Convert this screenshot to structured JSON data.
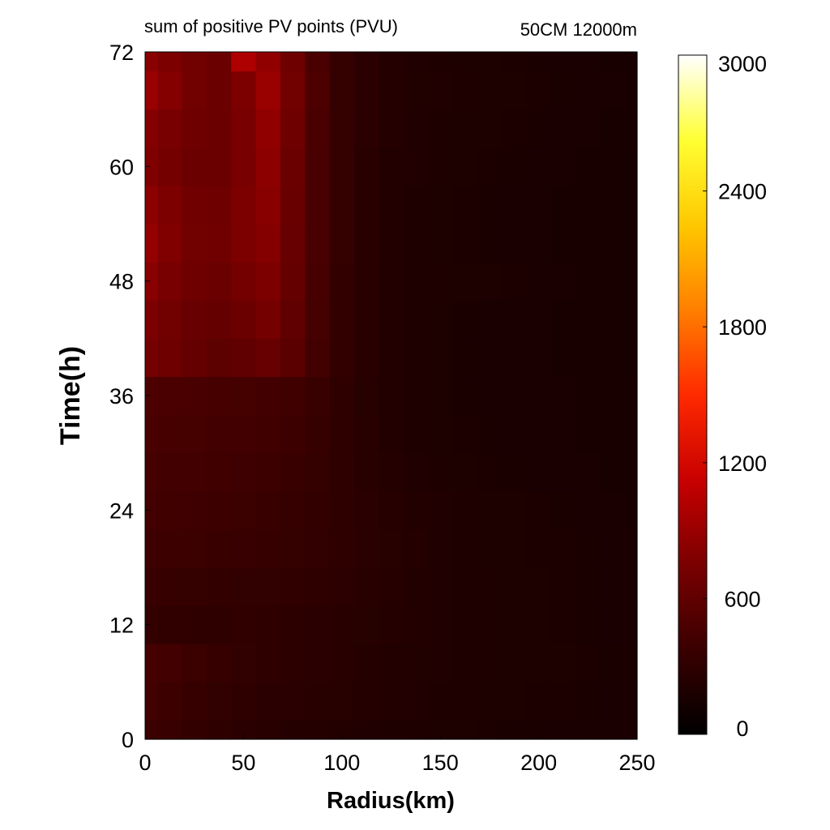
{
  "chart_data": {
    "type": "heatmap",
    "title": "sum of positive PV points (PVU)",
    "subtitle": "50CM 12000m",
    "xlabel": "Radius(km)",
    "ylabel": "Time(h)",
    "xlim": [
      0,
      250
    ],
    "ylim": [
      0,
      72
    ],
    "xticks": [
      0,
      50,
      100,
      150,
      200,
      250
    ],
    "yticks": [
      0,
      12,
      24,
      36,
      48,
      60,
      72
    ],
    "colorbar": {
      "range": [
        0,
        3000
      ],
      "ticks": [
        0,
        600,
        1200,
        1800,
        2400,
        3000
      ],
      "colors": [
        "#000000",
        "#3a0000",
        "#7a0000",
        "#c80000",
        "#ff2a00",
        "#ff7f00",
        "#ffc800",
        "#ffff33",
        "#ffffff"
      ]
    },
    "grid": false,
    "x": [
      0,
      12.5,
      25,
      37.5,
      50,
      62.5,
      75,
      87.5,
      100,
      112.5,
      125,
      137.5,
      150,
      162.5,
      175,
      187.5,
      200,
      212.5,
      225,
      237.5,
      250
    ],
    "y": [
      0,
      4,
      8,
      12,
      16,
      20,
      24,
      28,
      32,
      36,
      40,
      44,
      48,
      52,
      56,
      60,
      64,
      68,
      72
    ],
    "z": [
      [
        380,
        360,
        330,
        300,
        280,
        260,
        240,
        230,
        220,
        210,
        200,
        195,
        190,
        185,
        180,
        175,
        175,
        170,
        170,
        165,
        165
      ],
      [
        420,
        390,
        350,
        320,
        300,
        280,
        270,
        260,
        250,
        235,
        220,
        210,
        200,
        195,
        190,
        185,
        180,
        180,
        175,
        170,
        170
      ],
      [
        440,
        420,
        380,
        350,
        320,
        300,
        290,
        280,
        260,
        240,
        225,
        215,
        205,
        200,
        195,
        190,
        185,
        185,
        180,
        175,
        175
      ],
      [
        330,
        310,
        300,
        300,
        310,
        300,
        290,
        280,
        265,
        250,
        235,
        220,
        210,
        200,
        195,
        190,
        185,
        180,
        175,
        170,
        170
      ],
      [
        360,
        350,
        340,
        330,
        320,
        320,
        310,
        300,
        285,
        265,
        245,
        225,
        210,
        200,
        195,
        190,
        185,
        180,
        175,
        170,
        170
      ],
      [
        400,
        390,
        380,
        370,
        360,
        350,
        340,
        320,
        300,
        280,
        255,
        230,
        210,
        200,
        190,
        185,
        180,
        180,
        175,
        170,
        165
      ],
      [
        420,
        410,
        400,
        390,
        380,
        370,
        350,
        330,
        300,
        270,
        245,
        220,
        205,
        195,
        190,
        185,
        180,
        175,
        170,
        165,
        160
      ],
      [
        440,
        430,
        420,
        410,
        400,
        390,
        370,
        340,
        300,
        265,
        235,
        210,
        195,
        185,
        180,
        175,
        170,
        170,
        165,
        160,
        160
      ],
      [
        460,
        450,
        440,
        430,
        420,
        410,
        390,
        350,
        300,
        260,
        225,
        200,
        190,
        180,
        175,
        170,
        170,
        165,
        160,
        160,
        155
      ],
      [
        480,
        470,
        460,
        450,
        440,
        430,
        410,
        360,
        300,
        255,
        220,
        195,
        185,
        175,
        170,
        170,
        165,
        165,
        160,
        155,
        155
      ],
      [
        720,
        680,
        620,
        580,
        600,
        640,
        560,
        430,
        330,
        260,
        220,
        195,
        185,
        175,
        170,
        165,
        165,
        160,
        160,
        155,
        150
      ],
      [
        760,
        700,
        640,
        620,
        660,
        720,
        600,
        440,
        330,
        260,
        220,
        195,
        185,
        175,
        170,
        165,
        165,
        160,
        160,
        155,
        150
      ],
      [
        820,
        740,
        680,
        660,
        720,
        760,
        620,
        450,
        330,
        260,
        220,
        200,
        195,
        190,
        185,
        180,
        170,
        165,
        160,
        155,
        150
      ],
      [
        880,
        780,
        700,
        690,
        760,
        800,
        640,
        460,
        335,
        265,
        220,
        200,
        190,
        180,
        175,
        170,
        165,
        160,
        160,
        155,
        150
      ],
      [
        840,
        760,
        690,
        680,
        760,
        820,
        650,
        460,
        335,
        265,
        220,
        200,
        190,
        180,
        175,
        170,
        165,
        160,
        160,
        155,
        150
      ],
      [
        780,
        720,
        660,
        660,
        740,
        840,
        660,
        460,
        335,
        265,
        225,
        205,
        195,
        185,
        180,
        175,
        170,
        165,
        160,
        155,
        150
      ],
      [
        800,
        740,
        680,
        660,
        740,
        860,
        680,
        470,
        340,
        270,
        230,
        210,
        200,
        190,
        185,
        180,
        175,
        170,
        165,
        160,
        155
      ],
      [
        900,
        800,
        700,
        660,
        760,
        900,
        700,
        480,
        345,
        275,
        235,
        215,
        205,
        195,
        190,
        185,
        180,
        175,
        170,
        165,
        160
      ],
      [
        820,
        760,
        700,
        660,
        1000,
        860,
        680,
        470,
        340,
        270,
        230,
        210,
        200,
        190,
        185,
        180,
        175,
        170,
        165,
        160,
        155
      ]
    ]
  }
}
